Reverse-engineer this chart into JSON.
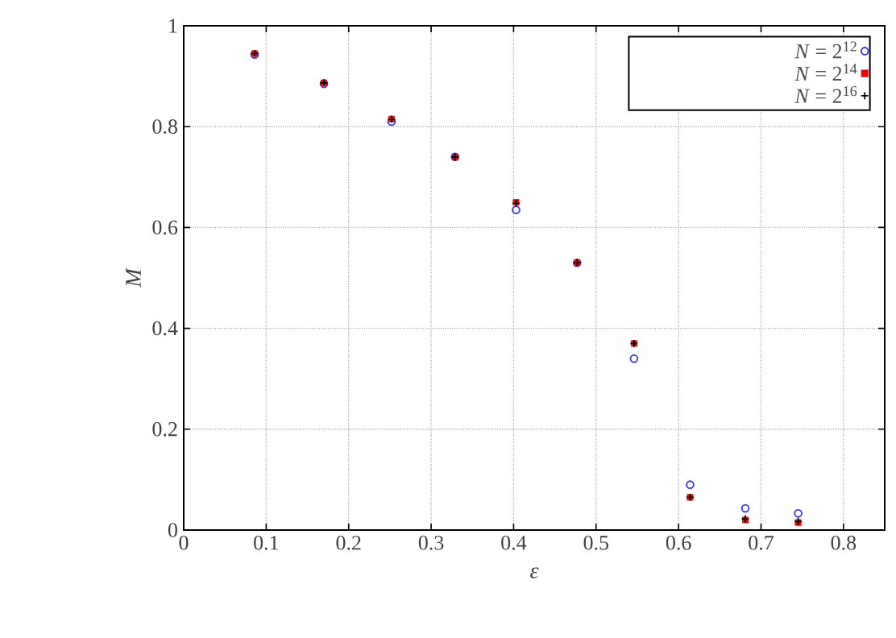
{
  "chart_data": {
    "type": "scatter",
    "xlabel": "ε",
    "ylabel": "M",
    "xlim": [
      0,
      0.85
    ],
    "ylim": [
      0,
      1
    ],
    "xticks": [
      0,
      0.1,
      0.2,
      0.3,
      0.4,
      0.5,
      0.6,
      0.7,
      0.8
    ],
    "yticks": [
      0,
      0.2,
      0.4,
      0.6,
      0.8,
      1
    ],
    "x": [
      0.086,
      0.17,
      0.252,
      0.329,
      0.403,
      0.477,
      0.546,
      0.614,
      0.681,
      0.745
    ],
    "grid": true,
    "legend": "top right",
    "series": [
      {
        "name": "*N* = 2$^{12}$",
        "color": "#3333ff",
        "marker": "circle",
        "values": [
          0.943,
          0.885,
          0.81,
          0.74,
          0.635,
          0.53,
          0.34,
          0.09,
          0.043,
          0.033
        ]
      },
      {
        "name": "*N* = 2$^{14}$",
        "color": "#ff0000",
        "marker": "square",
        "values": [
          0.945,
          0.887,
          0.815,
          0.74,
          0.65,
          0.53,
          0.37,
          0.065,
          0.02,
          0.015
        ]
      },
      {
        "name": "*N* = 2$^{16}$",
        "color": "#000000",
        "marker": "cross",
        "values": [
          0.945,
          0.887,
          0.815,
          0.74,
          0.648,
          0.53,
          0.37,
          0.065,
          0.022,
          0.017
        ]
      }
    ]
  }
}
